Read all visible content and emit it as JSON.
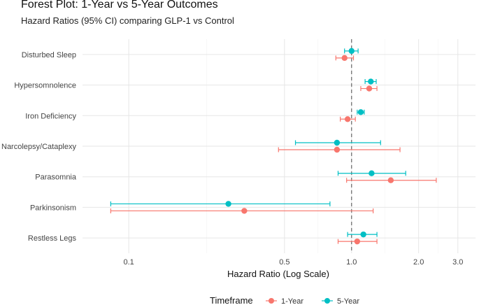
{
  "chart_data": {
    "type": "forest",
    "title": "Forest Plot: 1-Year vs 5-Year Outcomes",
    "subtitle": "Hazard Ratios (95% CI) comparing GLP-1 vs Control",
    "xlabel": "Hazard Ratio (Log Scale)",
    "x_scale": "log",
    "xlim": [
      0.062,
      3.6
    ],
    "x_ticks": [
      0.1,
      0.5,
      1.0,
      2.0,
      3.0
    ],
    "x_tick_labels": [
      "0.1",
      "0.5",
      "1.0",
      "2.0",
      "3.0"
    ],
    "reference_line": 1.0,
    "grid": true,
    "legend": {
      "title": "Timeframe",
      "position": "bottom"
    },
    "categories": [
      "Disturbed Sleep",
      "Hypersomnolence",
      "Iron Deficiency",
      "Narcolepsy/Cataplexy",
      "Parasomnia",
      "Parkinsonism",
      "Restless Legs"
    ],
    "series": [
      {
        "name": "1-Year",
        "color": "#F8766D",
        "points": [
          {
            "category": "Disturbed Sleep",
            "hr": 0.93,
            "lower": 0.85,
            "upper": 1.02
          },
          {
            "category": "Hypersomnolence",
            "hr": 1.2,
            "lower": 1.1,
            "upper": 1.3
          },
          {
            "category": "Iron Deficiency",
            "hr": 0.96,
            "lower": 0.89,
            "upper": 1.04
          },
          {
            "category": "Narcolepsy/Cataplexy",
            "hr": 0.86,
            "lower": 0.47,
            "upper": 1.65
          },
          {
            "category": "Parasomnia",
            "hr": 1.5,
            "lower": 0.95,
            "upper": 2.4
          },
          {
            "category": "Parkinsonism",
            "hr": 0.33,
            "lower": 0.083,
            "upper": 1.25
          },
          {
            "category": "Restless Legs",
            "hr": 1.06,
            "lower": 0.87,
            "upper": 1.3
          }
        ]
      },
      {
        "name": "5-Year",
        "color": "#00BFC4",
        "points": [
          {
            "category": "Disturbed Sleep",
            "hr": 1.0,
            "lower": 0.93,
            "upper": 1.07
          },
          {
            "category": "Hypersomnolence",
            "hr": 1.22,
            "lower": 1.15,
            "upper": 1.29
          },
          {
            "category": "Iron Deficiency",
            "hr": 1.1,
            "lower": 1.06,
            "upper": 1.14
          },
          {
            "category": "Narcolepsy/Cataplexy",
            "hr": 0.86,
            "lower": 0.56,
            "upper": 1.35
          },
          {
            "category": "Parasomnia",
            "hr": 1.23,
            "lower": 0.87,
            "upper": 1.75
          },
          {
            "category": "Parkinsonism",
            "hr": 0.28,
            "lower": 0.083,
            "upper": 0.8
          },
          {
            "category": "Restless Legs",
            "hr": 1.13,
            "lower": 0.96,
            "upper": 1.3
          }
        ]
      }
    ]
  }
}
